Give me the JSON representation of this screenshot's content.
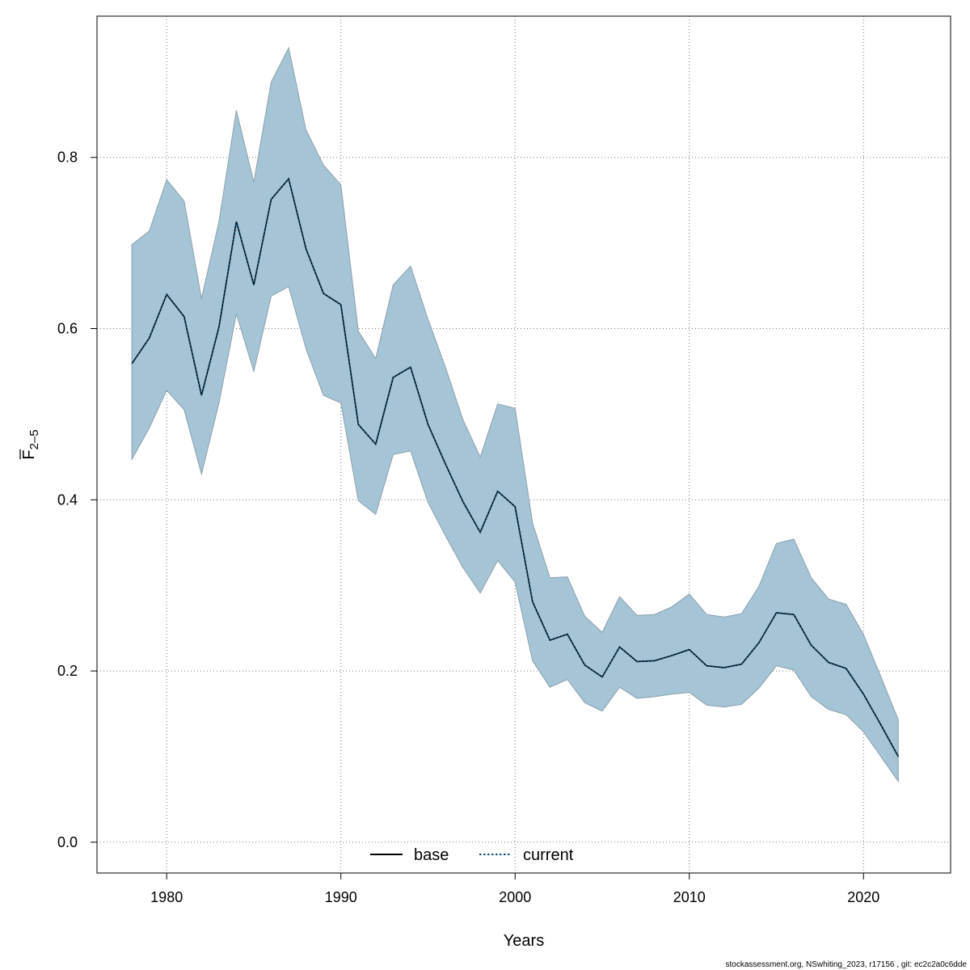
{
  "chart_data": {
    "type": "line",
    "title": "",
    "xlabel": "Years",
    "ylabel_main": "F",
    "ylabel_sub": "2–5",
    "xlim": [
      1976,
      2025
    ],
    "ylim": [
      -0.036,
      0.965
    ],
    "x_ticks": [
      1980,
      1990,
      2000,
      2010,
      2020
    ],
    "y_ticks": [
      0.0,
      0.2,
      0.4,
      0.6,
      0.8
    ],
    "y_tick_labels": [
      "0.0",
      "0.2",
      "0.4",
      "0.6",
      "0.8"
    ],
    "grid": true,
    "legend_position": "bottom-center",
    "colors": {
      "band_fill": "#a5c4d5",
      "band_stroke": "#8aa0ad",
      "base_line": "#000000",
      "current_line": "#0a4f7a",
      "grid": "#777777"
    },
    "x": [
      1978,
      1979,
      1980,
      1981,
      1982,
      1983,
      1984,
      1985,
      1986,
      1987,
      1988,
      1989,
      1990,
      1991,
      1992,
      1993,
      1994,
      1995,
      1996,
      1997,
      1998,
      1999,
      2000,
      2001,
      2002,
      2003,
      2004,
      2005,
      2006,
      2007,
      2008,
      2009,
      2010,
      2011,
      2012,
      2013,
      2014,
      2015,
      2016,
      2017,
      2018,
      2019,
      2020,
      2021,
      2022
    ],
    "series": [
      {
        "name": "base",
        "style": "solid",
        "values": [
          0.559,
          0.589,
          0.64,
          0.614,
          0.522,
          0.602,
          0.725,
          0.651,
          0.751,
          0.775,
          0.693,
          0.641,
          0.628,
          0.488,
          0.465,
          0.543,
          0.555,
          0.488,
          0.442,
          0.398,
          0.362,
          0.41,
          0.392,
          0.281,
          0.236,
          0.243,
          0.207,
          0.193,
          0.228,
          0.211,
          0.212,
          0.218,
          0.225,
          0.206,
          0.204,
          0.208,
          0.233,
          0.268,
          0.266,
          0.23,
          0.21,
          0.203,
          0.173,
          0.137,
          0.1
        ]
      },
      {
        "name": "current",
        "style": "dotted",
        "values": [
          0.559,
          0.589,
          0.64,
          0.614,
          0.522,
          0.602,
          0.725,
          0.651,
          0.751,
          0.775,
          0.693,
          0.641,
          0.628,
          0.488,
          0.465,
          0.543,
          0.555,
          0.488,
          0.442,
          0.398,
          0.362,
          0.41,
          0.392,
          0.281,
          0.236,
          0.243,
          0.207,
          0.193,
          0.228,
          0.211,
          0.212,
          0.218,
          0.225,
          0.206,
          0.204,
          0.208,
          0.233,
          0.268,
          0.266,
          0.23,
          0.21,
          0.203,
          0.173,
          0.137,
          0.1
        ]
      }
    ],
    "band_upper": [
      0.698,
      0.714,
      0.774,
      0.749,
      0.635,
      0.725,
      0.855,
      0.771,
      0.888,
      0.928,
      0.832,
      0.791,
      0.768,
      0.597,
      0.565,
      0.651,
      0.673,
      0.611,
      0.555,
      0.494,
      0.45,
      0.512,
      0.507,
      0.373,
      0.309,
      0.31,
      0.264,
      0.245,
      0.287,
      0.265,
      0.266,
      0.275,
      0.29,
      0.266,
      0.263,
      0.267,
      0.299,
      0.349,
      0.354,
      0.309,
      0.284,
      0.278,
      0.243,
      0.193,
      0.143
    ],
    "band_lower": [
      0.447,
      0.484,
      0.528,
      0.505,
      0.43,
      0.513,
      0.617,
      0.55,
      0.638,
      0.649,
      0.576,
      0.522,
      0.513,
      0.399,
      0.383,
      0.453,
      0.457,
      0.397,
      0.358,
      0.321,
      0.291,
      0.329,
      0.304,
      0.212,
      0.181,
      0.19,
      0.163,
      0.153,
      0.181,
      0.168,
      0.17,
      0.173,
      0.175,
      0.16,
      0.158,
      0.161,
      0.18,
      0.206,
      0.201,
      0.17,
      0.155,
      0.149,
      0.129,
      0.1,
      0.071
    ]
  },
  "footer": {
    "text": "stockassessment.org, NSwhiting_2023, r17156 , git: ec2c2a0c6dde"
  }
}
